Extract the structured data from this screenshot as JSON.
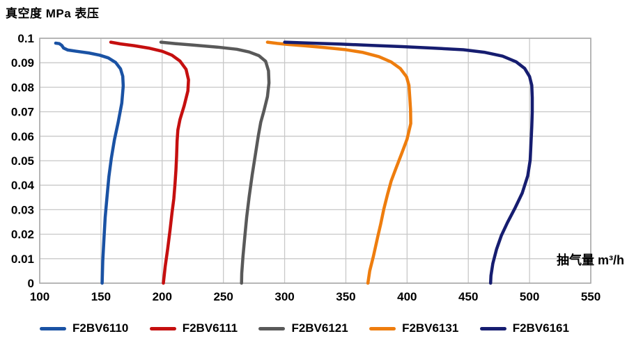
{
  "page": {
    "title": "真空度 MPa 表压"
  },
  "chart_data": {
    "type": "line",
    "title": "真空度 MPa 表压",
    "xlabel": "抽气量 m³/h",
    "ylabel": "真空度 MPa 表压",
    "xlim": [
      100,
      550
    ],
    "ylim": [
      0,
      0.1
    ],
    "x_ticks": [
      100,
      150,
      200,
      250,
      300,
      350,
      400,
      450,
      500,
      550
    ],
    "y_ticks": [
      0,
      0.01,
      0.02,
      0.03,
      0.04,
      0.05,
      0.06,
      0.07,
      0.08,
      0.09,
      0.1
    ],
    "y_tick_labels": [
      "0",
      "0.01",
      "0.02",
      "0.03",
      "0.04",
      "0.05",
      "0.06",
      "0.07",
      "0.08",
      "0.09",
      "0.1"
    ],
    "grid": true,
    "legend_position": "bottom",
    "series": [
      {
        "name": "F2BV6110",
        "color": "#1A52A4",
        "points": [
          [
            113,
            0.098
          ],
          [
            116,
            0.0978
          ],
          [
            118,
            0.0971
          ],
          [
            119.5,
            0.096
          ],
          [
            123,
            0.0952
          ],
          [
            130,
            0.0947
          ],
          [
            140,
            0.094
          ],
          [
            149,
            0.0931
          ],
          [
            156,
            0.092
          ],
          [
            162,
            0.0901
          ],
          [
            166,
            0.0875
          ],
          [
            167.8,
            0.0845
          ],
          [
            168.2,
            0.0805
          ],
          [
            167,
            0.0735
          ],
          [
            164,
            0.0655
          ],
          [
            161,
            0.0585
          ],
          [
            158.5,
            0.051
          ],
          [
            156.5,
            0.0435
          ],
          [
            155,
            0.0355
          ],
          [
            153.5,
            0.027
          ],
          [
            152.5,
            0.0185
          ],
          [
            151.5,
            0.009
          ],
          [
            151,
            0
          ]
        ]
      },
      {
        "name": "F2BV6111",
        "color": "#C50F0F",
        "points": [
          [
            158,
            0.0984
          ],
          [
            166,
            0.0977
          ],
          [
            177,
            0.097
          ],
          [
            189,
            0.096
          ],
          [
            200,
            0.0947
          ],
          [
            208,
            0.0931
          ],
          [
            214.5,
            0.0907
          ],
          [
            219.5,
            0.0873
          ],
          [
            221.5,
            0.083
          ],
          [
            221,
            0.0785
          ],
          [
            218,
            0.0725
          ],
          [
            214.5,
            0.0668
          ],
          [
            212.8,
            0.0625
          ],
          [
            212.2,
            0.058
          ],
          [
            211.8,
            0.052
          ],
          [
            211.2,
            0.046
          ],
          [
            210.5,
            0.0405
          ],
          [
            209.5,
            0.0345
          ],
          [
            208,
            0.0285
          ],
          [
            206.5,
            0.022
          ],
          [
            204.5,
            0.014
          ],
          [
            202.5,
            0.007
          ],
          [
            201,
            0
          ]
        ]
      },
      {
        "name": "F2BV6121",
        "color": "#595959",
        "points": [
          [
            199,
            0.0984
          ],
          [
            211,
            0.0978
          ],
          [
            226,
            0.0972
          ],
          [
            245,
            0.0964
          ],
          [
            261,
            0.0955
          ],
          [
            271,
            0.0944
          ],
          [
            279,
            0.0929
          ],
          [
            284.5,
            0.0906
          ],
          [
            286.8,
            0.0867
          ],
          [
            287.2,
            0.0818
          ],
          [
            286,
            0.0762
          ],
          [
            283,
            0.0702
          ],
          [
            280.5,
            0.0657
          ],
          [
            278.5,
            0.0602
          ],
          [
            276,
            0.0522
          ],
          [
            273.5,
            0.0442
          ],
          [
            271,
            0.0352
          ],
          [
            269,
            0.027
          ],
          [
            267.5,
            0.019
          ],
          [
            266,
            0.011
          ],
          [
            265,
            0.004
          ],
          [
            264.8,
            0
          ]
        ]
      },
      {
        "name": "F2BV6131",
        "color": "#EE7D0E",
        "points": [
          [
            286,
            0.0984
          ],
          [
            294,
            0.0979
          ],
          [
            302,
            0.0975
          ],
          [
            317,
            0.0969
          ],
          [
            333,
            0.0962
          ],
          [
            349,
            0.0954
          ],
          [
            364,
            0.0942
          ],
          [
            377,
            0.0925
          ],
          [
            387,
            0.0903
          ],
          [
            394.5,
            0.0876
          ],
          [
            399.5,
            0.0843
          ],
          [
            401.5,
            0.0808
          ],
          [
            402.2,
            0.0758
          ],
          [
            402.8,
            0.0708
          ],
          [
            403,
            0.0652
          ],
          [
            400,
            0.0588
          ],
          [
            395.5,
            0.0528
          ],
          [
            391,
            0.047
          ],
          [
            387,
            0.0417
          ],
          [
            384,
            0.0362
          ],
          [
            381,
            0.0302
          ],
          [
            378.5,
            0.0242
          ],
          [
            376,
            0.0188
          ],
          [
            372.5,
            0.011
          ],
          [
            369.5,
            0.005
          ],
          [
            368,
            0
          ]
        ]
      },
      {
        "name": "F2BV6161",
        "color": "#161D70",
        "points": [
          [
            300,
            0.0984
          ],
          [
            322,
            0.098
          ],
          [
            346,
            0.0976
          ],
          [
            371,
            0.0971
          ],
          [
            396,
            0.0966
          ],
          [
            421,
            0.096
          ],
          [
            446,
            0.0953
          ],
          [
            463,
            0.0943
          ],
          [
            478,
            0.0927
          ],
          [
            489,
            0.0904
          ],
          [
            496,
            0.0877
          ],
          [
            500,
            0.0844
          ],
          [
            501.8,
            0.0808
          ],
          [
            502.2,
            0.0758
          ],
          [
            502.2,
            0.0698
          ],
          [
            501.8,
            0.0638
          ],
          [
            501.2,
            0.0572
          ],
          [
            500.5,
            0.0502
          ],
          [
            498.5,
            0.0438
          ],
          [
            494,
            0.0368
          ],
          [
            488,
            0.0305
          ],
          [
            482,
            0.0248
          ],
          [
            477,
            0.0195
          ],
          [
            473,
            0.0138
          ],
          [
            470,
            0.008
          ],
          [
            468.5,
            0.003
          ],
          [
            468.2,
            0
          ]
        ]
      }
    ]
  },
  "legend": {
    "items": [
      {
        "label": "F2BV6110",
        "color": "#1A52A4"
      },
      {
        "label": "F2BV6111",
        "color": "#C50F0F"
      },
      {
        "label": "F2BV6121",
        "color": "#595959"
      },
      {
        "label": "F2BV6131",
        "color": "#EE7D0E"
      },
      {
        "label": "F2BV6161",
        "color": "#161D70"
      }
    ]
  },
  "style": {
    "grid_color": "#C8C8C8",
    "border_color": "#A8A8A8",
    "text_color": "#000000",
    "background": "#FFFFFF",
    "line_width": 4.5
  }
}
